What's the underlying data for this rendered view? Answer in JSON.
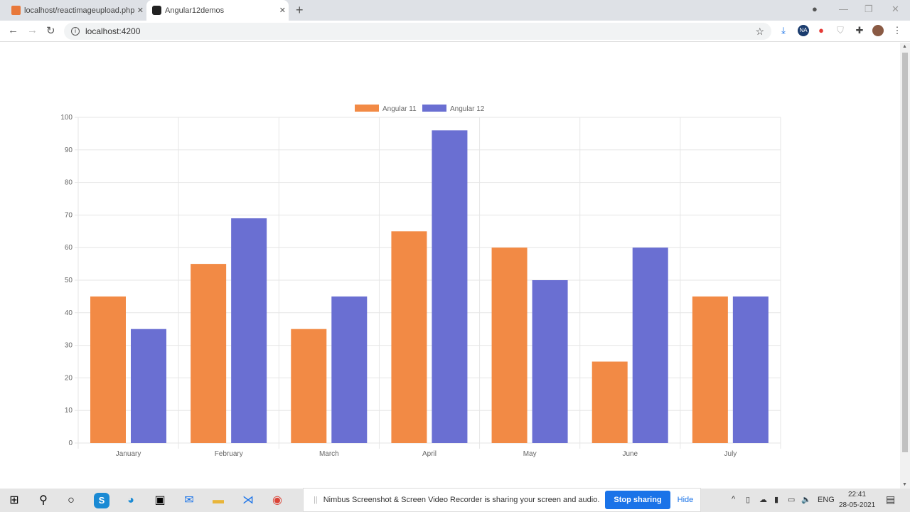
{
  "browser": {
    "tabs": [
      {
        "title": "localhost/reactimageupload.php",
        "icon": "xampp-icon",
        "color": "#e8783a"
      },
      {
        "title": "Angular12demos",
        "icon": "angular-icon",
        "color": "#222222"
      }
    ],
    "url": "localhost:4200",
    "extensions": [
      "download-icon",
      "na-extension-icon",
      "record-icon",
      "shield-icon",
      "puzzle-icon",
      "profile-avatar"
    ]
  },
  "chart_data": {
    "type": "bar",
    "categories": [
      "January",
      "February",
      "March",
      "April",
      "May",
      "June",
      "July"
    ],
    "series": [
      {
        "name": "Angular 11",
        "color": "#f28a45",
        "values": [
          45,
          55,
          35,
          65,
          60,
          25,
          45
        ]
      },
      {
        "name": "Angular 12",
        "color": "#6a6fd2",
        "values": [
          35,
          69,
          45,
          96,
          50,
          60,
          45
        ]
      }
    ],
    "ylim": [
      0,
      100
    ],
    "yticks": [
      0,
      10,
      20,
      30,
      40,
      50,
      60,
      70,
      80,
      90,
      100
    ],
    "grid": true,
    "legend": "top-center"
  },
  "share_bar": {
    "message": "Nimbus Screenshot & Screen Video Recorder is sharing your screen and audio.",
    "stop": "Stop sharing",
    "hide": "Hide"
  },
  "taskbar": {
    "lang": "ENG",
    "time": "22:41",
    "date": "28-05-2021"
  }
}
